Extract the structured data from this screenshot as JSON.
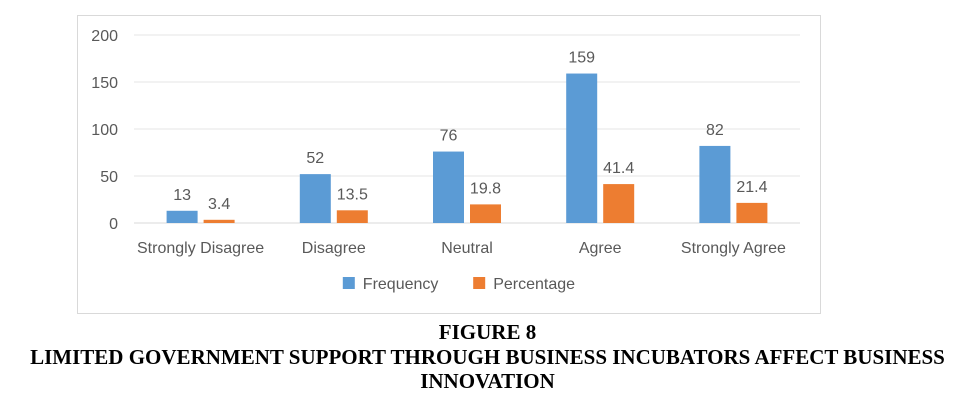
{
  "figure": {
    "label": "FIGURE 8",
    "title": "LIMITED GOVERNMENT SUPPORT THROUGH BUSINESS INCUBATORS AFFECT BUSINESS INNOVATION"
  },
  "chart_data": {
    "type": "bar",
    "categories": [
      "Strongly Disagree",
      "Disagree",
      "Neutral",
      "Agree",
      "Strongly Agree"
    ],
    "series": [
      {
        "name": "Frequency",
        "values": [
          13,
          52,
          76,
          159,
          82
        ],
        "color": "#5b9bd5"
      },
      {
        "name": "Percentage",
        "values": [
          3.4,
          13.5,
          19.8,
          41.4,
          21.4
        ],
        "color": "#ed7d31"
      }
    ],
    "ylim": [
      0,
      200
    ],
    "yticks": [
      0,
      50,
      100,
      150,
      200
    ],
    "grid": true,
    "legend": "bottom"
  }
}
